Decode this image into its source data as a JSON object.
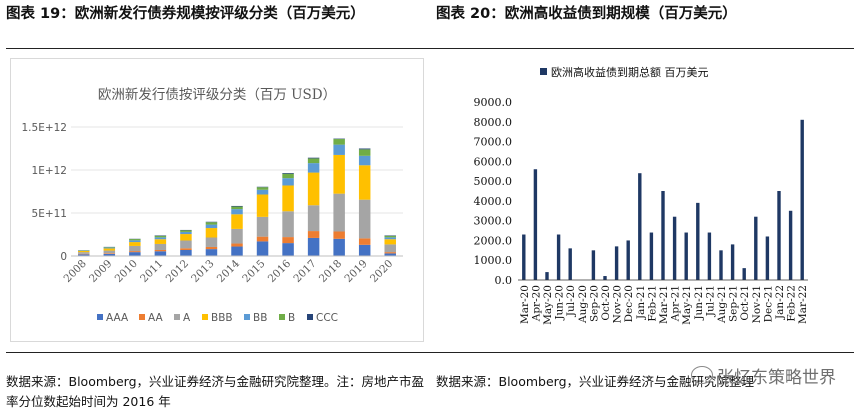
{
  "header": {
    "left_title": "图表 19：欧洲新发行债券规模按评级分类（百万美元）",
    "right_title": "图表 20：欧洲高收益债到期规模（百万美元）"
  },
  "source": {
    "left": "数据来源：Bloomberg，兴业证券经济与金融研究院整理。注：房地产市盈率分位数起始时间为 2016 年",
    "right": "数据来源：Bloomberg，兴业证券经济与金融研究院整理"
  },
  "watermark": {
    "text": "张忆东策略世界"
  },
  "chart_data": [
    {
      "type": "bar",
      "stacked": true,
      "title": "欧洲新发行债按评级分类（百万 USD）",
      "categories": [
        "2008",
        "2009",
        "2010",
        "2011",
        "2012",
        "2013",
        "2014",
        "2015",
        "2016",
        "2017",
        "2018",
        "2019",
        "2020"
      ],
      "yticks": [
        0,
        500000000000,
        1000000000000,
        1500000000000
      ],
      "ytick_labels": [
        "0",
        "5E+11",
        "1E+12",
        "1.5E+12"
      ],
      "ylim": [
        0,
        1500000000000
      ],
      "legend_position": "bottom",
      "series": [
        {
          "name": "AAA",
          "color": "#4472c4",
          "values": [
            20000000000.0,
            25000000000.0,
            45000000000.0,
            55000000000.0,
            70000000000.0,
            80000000000.0,
            110000000000.0,
            170000000000.0,
            150000000000.0,
            210000000000.0,
            200000000000.0,
            130000000000.0,
            30000000000.0
          ]
        },
        {
          "name": "AA",
          "color": "#ed7d31",
          "values": [
            5000000000.0,
            8000000000.0,
            12000000000.0,
            15000000000.0,
            20000000000.0,
            25000000000.0,
            35000000000.0,
            55000000000.0,
            70000000000.0,
            80000000000.0,
            85000000000.0,
            75000000000.0,
            15000000000.0
          ]
        },
        {
          "name": "A",
          "color": "#a5a5a5",
          "values": [
            20000000000.0,
            30000000000.0,
            60000000000.0,
            70000000000.0,
            90000000000.0,
            110000000000.0,
            170000000000.0,
            230000000000.0,
            300000000000.0,
            300000000000.0,
            440000000000.0,
            450000000000.0,
            90000000000.0
          ]
        },
        {
          "name": "BBB",
          "color": "#ffc000",
          "values": [
            15000000000.0,
            25000000000.0,
            45000000000.0,
            55000000000.0,
            75000000000.0,
            110000000000.0,
            170000000000.0,
            260000000000.0,
            300000000000.0,
            380000000000.0,
            450000000000.0,
            400000000000.0,
            60000000000.0
          ]
        },
        {
          "name": "BB",
          "color": "#5b9bd5",
          "values": [
            5000000000.0,
            10000000000.0,
            20000000000.0,
            22000000000.0,
            25000000000.0,
            40000000000.0,
            60000000000.0,
            55000000000.0,
            85000000000.0,
            110000000000.0,
            120000000000.0,
            110000000000.0,
            22000000000.0
          ]
        },
        {
          "name": "B",
          "color": "#70ad47",
          "values": [
            3000000000.0,
            6000000000.0,
            15000000000.0,
            18000000000.0,
            18000000000.0,
            28000000000.0,
            30000000000.0,
            30000000000.0,
            52000000000.0,
            55000000000.0,
            65000000000.0,
            75000000000.0,
            18000000000.0
          ]
        },
        {
          "name": "CCC",
          "color": "#264478",
          "values": [
            1000000000.0,
            2000000000.0,
            3000000000.0,
            5000000000.0,
            5000000000.0,
            5000000000.0,
            7000000000.0,
            5000000000.0,
            8000000000.0,
            8000000000.0,
            5000000000.0,
            10000000000.0,
            5000000000.0
          ]
        }
      ]
    },
    {
      "type": "bar",
      "title": "",
      "series_name": "欧洲高收益债到期总额 百万美元",
      "color": "#1f3864",
      "categories": [
        "Mar-20",
        "Apr-20",
        "May-20",
        "Jun-20",
        "Jul-20",
        "Aug-20",
        "Sep-20",
        "Oct-20",
        "Nov-20",
        "Dec-20",
        "Jan-21",
        "Feb-21",
        "Mar-21",
        "Apr-21",
        "May-21",
        "Jun-21",
        "Jul-21",
        "Aug-21",
        "Sep-21",
        "Oct-21",
        "Nov-21",
        "Dec-21",
        "Jan-22",
        "Feb-22",
        "Mar-22"
      ],
      "values": [
        2300,
        5600,
        400,
        2300,
        1600,
        0,
        1500,
        200,
        1700,
        2000,
        5400,
        2400,
        4500,
        3200,
        2400,
        3900,
        2400,
        1500,
        1800,
        600,
        3200,
        2200,
        4500,
        3500,
        8100
      ],
      "yticks": [
        0,
        1000,
        2000,
        3000,
        4000,
        5000,
        6000,
        7000,
        8000,
        9000
      ],
      "ytick_labels": [
        "0.0",
        "1000.0",
        "2000.0",
        "3000.0",
        "4000.0",
        "5000.0",
        "6000.0",
        "7000.0",
        "8000.0",
        "9000.0"
      ],
      "ylim": [
        0,
        9000
      ],
      "legend_position": "top"
    }
  ]
}
